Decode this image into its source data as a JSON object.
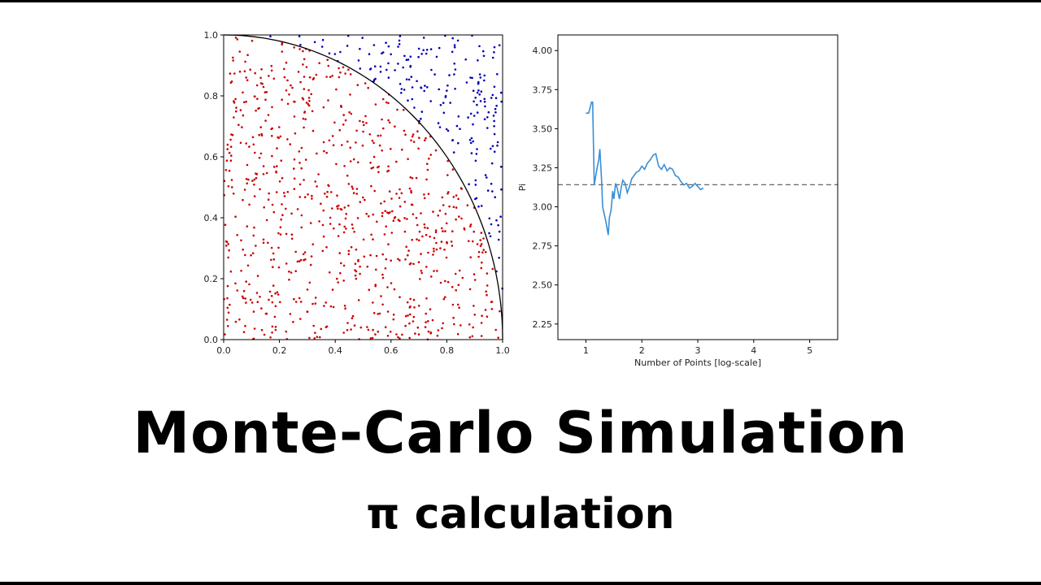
{
  "title": "Monte-Carlo Simulation",
  "subtitle": "π calculation",
  "chart_data": [
    {
      "type": "scatter",
      "xlim": [
        0,
        1
      ],
      "ylim": [
        0,
        1
      ],
      "xticks": [
        0.0,
        0.2,
        0.4,
        0.6,
        0.8,
        1.0
      ],
      "yticks": [
        0.0,
        0.2,
        0.4,
        0.6,
        0.8,
        1.0
      ],
      "xtick_labels": [
        "0.0",
        "0.2",
        "0.4",
        "0.6",
        "0.8",
        "1.0"
      ],
      "ytick_labels": [
        "0.0",
        "0.2",
        "0.4",
        "0.6",
        "0.8",
        "1.0"
      ],
      "curve": "quarter-circle x^2 + y^2 = 1",
      "curve_color": "#000000",
      "inside_color": "#cc0000",
      "outside_color": "#0000b4",
      "series": [
        {
          "points": [
            [
              0.1,
              0.55
            ],
            [
              0.3,
              0.2
            ],
            [
              0.5,
              0.45
            ],
            [
              0.65,
              0.3
            ],
            [
              0.2,
              0.85
            ],
            [
              0.8,
              0.35
            ]
          ],
          "color": "#cc0000"
        },
        {
          "points": [
            [
              0.8,
              0.9
            ],
            [
              0.95,
              0.5
            ],
            [
              0.7,
              0.95
            ],
            [
              0.9,
              0.75
            ]
          ],
          "color": "#0000b4"
        }
      ],
      "point_count": 1000,
      "grid": false
    },
    {
      "type": "line",
      "xlabel": "Number of Points [log-scale]",
      "ylabel": "Pi",
      "xlim": [
        0.5,
        5.5
      ],
      "ylim": [
        2.15,
        4.1
      ],
      "xticks": [
        1,
        2,
        3,
        4,
        5
      ],
      "yticks": [
        2.25,
        2.5,
        2.75,
        3.0,
        3.25,
        3.5,
        3.75,
        4.0
      ],
      "xtick_labels": [
        "1",
        "2",
        "3",
        "4",
        "5"
      ],
      "ytick_labels": [
        "2.25",
        "2.50",
        "2.75",
        "3.00",
        "3.25",
        "3.50",
        "3.75",
        "4.00"
      ],
      "reference_line": {
        "y": 3.14159,
        "style": "dashed",
        "color": "#555555"
      },
      "line_color": "#3a8fd6",
      "series": [
        {
          "x": [
            1.0,
            1.05,
            1.08,
            1.1,
            1.12,
            1.15,
            1.2,
            1.23,
            1.25,
            1.28,
            1.3,
            1.33,
            1.36,
            1.4,
            1.42,
            1.45,
            1.48,
            1.5,
            1.53,
            1.56,
            1.6,
            1.63,
            1.66,
            1.7,
            1.74,
            1.78,
            1.82,
            1.86,
            1.9,
            1.95,
            2.0,
            2.05,
            2.1,
            2.15,
            2.2,
            2.25,
            2.3,
            2.35,
            2.4,
            2.45,
            2.5,
            2.55,
            2.6,
            2.65,
            2.7,
            2.75,
            2.8,
            2.85,
            2.9,
            2.95,
            3.0,
            3.05,
            3.1
          ],
          "y": [
            3.6,
            3.6,
            3.64,
            3.67,
            3.67,
            3.14,
            3.25,
            3.3,
            3.37,
            3.17,
            3.0,
            2.95,
            2.9,
            2.82,
            2.93,
            2.98,
            3.1,
            3.05,
            3.15,
            3.12,
            3.05,
            3.12,
            3.17,
            3.15,
            3.09,
            3.13,
            3.18,
            3.2,
            3.22,
            3.23,
            3.26,
            3.24,
            3.28,
            3.3,
            3.33,
            3.34,
            3.26,
            3.24,
            3.27,
            3.23,
            3.25,
            3.24,
            3.2,
            3.19,
            3.16,
            3.14,
            3.15,
            3.12,
            3.13,
            3.15,
            3.13,
            3.11,
            3.12
          ]
        }
      ],
      "grid": false
    }
  ]
}
